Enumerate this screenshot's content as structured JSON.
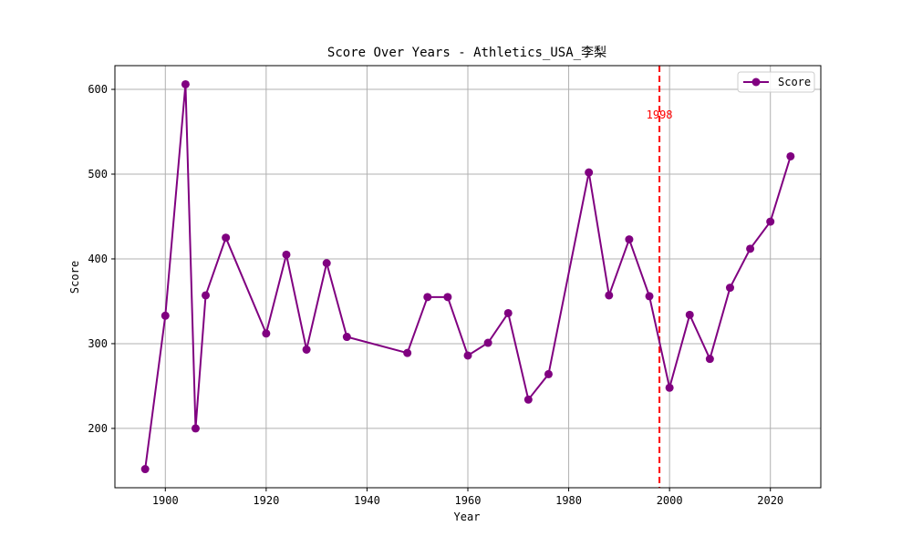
{
  "chart_data": {
    "type": "line",
    "title": "Score Over Years - Athletics_USA_李梨",
    "xlabel": "Year",
    "ylabel": "Score",
    "xlim": [
      1890,
      2030
    ],
    "ylim": [
      130,
      628
    ],
    "xticks": [
      1900,
      1920,
      1940,
      1960,
      1980,
      2000,
      2020
    ],
    "yticks": [
      200,
      300,
      400,
      500,
      600
    ],
    "grid": true,
    "legend_position": "top-right",
    "series": [
      {
        "name": "Score",
        "color": "#800080",
        "marker": "circle",
        "x": [
          1896,
          1900,
          1904,
          1906,
          1908,
          1912,
          1920,
          1924,
          1928,
          1932,
          1936,
          1948,
          1952,
          1956,
          1960,
          1964,
          1968,
          1972,
          1976,
          1984,
          1988,
          1992,
          1996,
          2000,
          2004,
          2008,
          2012,
          2016,
          2020,
          2024
        ],
        "y": [
          152,
          333,
          606,
          200,
          357,
          425,
          312,
          405,
          293,
          395,
          308,
          289,
          355,
          355,
          286,
          301,
          336,
          234,
          264,
          502,
          357,
          423,
          356,
          248,
          334,
          282,
          366,
          412,
          444,
          521
        ]
      }
    ],
    "annotations": [
      {
        "type": "vline",
        "x": 1998,
        "color": "#ff0000",
        "style": "dashed",
        "label": "1998"
      }
    ]
  }
}
